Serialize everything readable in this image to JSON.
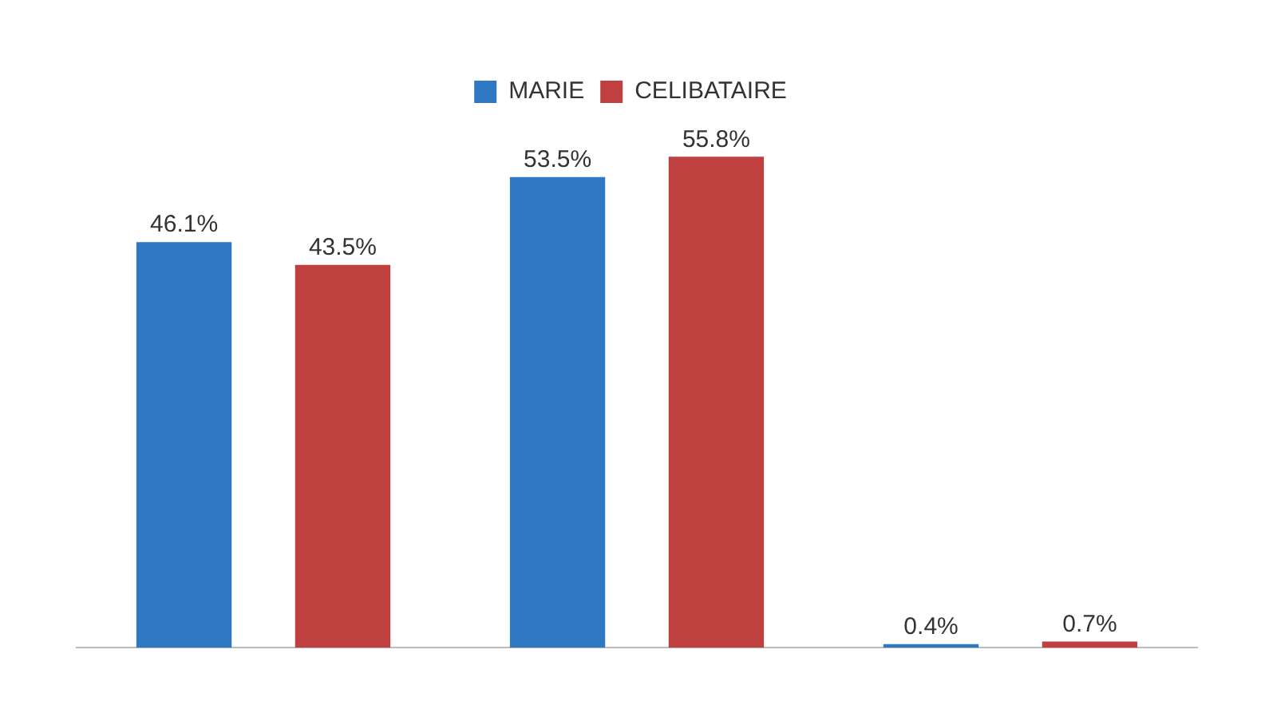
{
  "chart_data": {
    "type": "bar",
    "categories": [
      null,
      null,
      null
    ],
    "series": [
      {
        "name": "MARIE",
        "color": "#2f78c4",
        "values": [
          46.1,
          53.5,
          0.4
        ],
        "value_labels": [
          "46.1%",
          "53.5%",
          "0.4%"
        ]
      },
      {
        "name": "CELIBATAIRE",
        "color": "#c0403f",
        "values": [
          43.5,
          55.8,
          0.7
        ],
        "value_labels": [
          "43.5%",
          "55.8%",
          "0.7%"
        ]
      }
    ],
    "legend": "top",
    "grid": false
  }
}
